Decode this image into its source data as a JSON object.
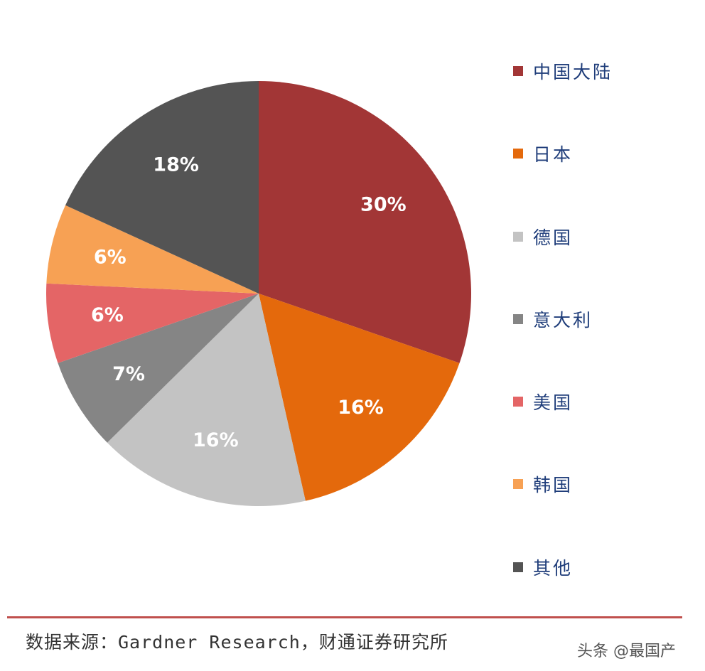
{
  "chart_data": {
    "type": "pie",
    "categories": [
      "中国大陆",
      "日本",
      "德国",
      "意大利",
      "美国",
      "韩国",
      "其他"
    ],
    "values": [
      30,
      16,
      16,
      7,
      6,
      6,
      18
    ],
    "value_labels": [
      "30%",
      "16%",
      "16%",
      "7%",
      "6%",
      "6%",
      "18%"
    ],
    "colors": [
      "#a23636",
      "#e4690c",
      "#c3c3c3",
      "#858585",
      "#e46566",
      "#f7a154",
      "#545454"
    ],
    "legend_placement": "right"
  },
  "source_text": "数据来源：Gardner Research，财通证券研究所",
  "watermark_text": "头条 @最国产"
}
